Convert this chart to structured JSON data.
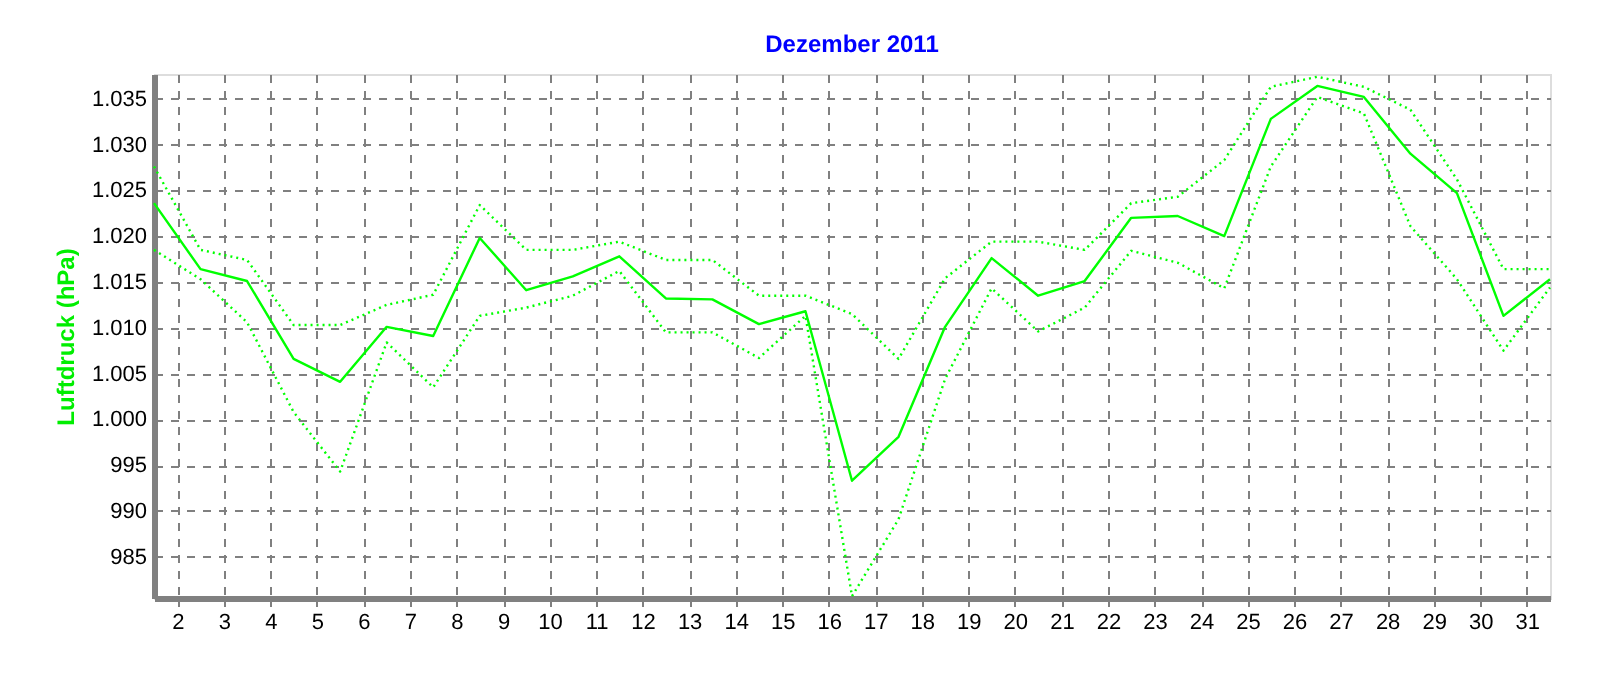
{
  "chart_data": {
    "type": "line",
    "title": "Dezember 2011",
    "ylabel": "Luftdruck (hPa)",
    "x": [
      1.5,
      2.5,
      3.5,
      4.5,
      5.5,
      6.5,
      7.5,
      8.5,
      9.5,
      10.5,
      11.5,
      12.5,
      13.5,
      14.5,
      15.5,
      16.5,
      17.5,
      18.5,
      19.5,
      20.5,
      21.5,
      22.5,
      23.5,
      24.5,
      25.5,
      26.5,
      27.5,
      28.5,
      29.5,
      30.5,
      31.5
    ],
    "series": [
      {
        "color": "#00ff00",
        "line_style": "solid",
        "values": [
          1023.6,
          1016.4,
          1015.1,
          1006.6,
          1004.1,
          1010.1,
          1009.1,
          1019.8,
          1014.1,
          1015.6,
          1017.8,
          1013.2,
          1013.1,
          1010.4,
          1011.8,
          993.3,
          998.1,
          1010.1,
          1017.6,
          1013.5,
          1015.1,
          1022.0,
          1022.2,
          1020.0,
          1032.8,
          1036.4,
          1035.2,
          1029.0,
          1024.7,
          1011.3,
          1015.3
        ]
      },
      {
        "color": "#00ff00",
        "line_style": "dotted",
        "values": [
          1027.6,
          1018.5,
          1017.4,
          1010.3,
          1010.3,
          1012.5,
          1013.6,
          1023.4,
          1018.5,
          1018.5,
          1019.4,
          1017.4,
          1017.4,
          1013.5,
          1013.5,
          1011.5,
          1006.6,
          1015.4,
          1019.4,
          1019.4,
          1018.5,
          1023.6,
          1024.3,
          1028.3,
          1036.3,
          1037.4,
          1036.3,
          1033.8,
          1026.2,
          1016.4,
          1016.4
        ]
      },
      {
        "color": "#00ff00",
        "line_style": "dotted",
        "values": [
          1018.5,
          1015.3,
          1010.6,
          1000.8,
          994.3,
          1008.4,
          1003.5,
          1011.3,
          1012.2,
          1013.5,
          1016.2,
          1009.5,
          1009.5,
          1006.7,
          1011.3,
          980.7,
          989.1,
          1004.4,
          1014.3,
          1009.6,
          1012.2,
          1018.4,
          1017.1,
          1014.3,
          1027.6,
          1035.2,
          1033.4,
          1021.1,
          1015.3,
          1007.5,
          1014.4
        ]
      }
    ],
    "xlim": [
      1.5,
      31.5
    ],
    "xticks": [
      2,
      3,
      4,
      5,
      6,
      7,
      8,
      9,
      10,
      11,
      12,
      13,
      14,
      15,
      16,
      17,
      18,
      19,
      20,
      21,
      22,
      23,
      24,
      25,
      26,
      27,
      28,
      29,
      30,
      31
    ],
    "ylim": [
      980.5,
      1037.7
    ],
    "yticks": [
      985,
      990,
      995,
      {
        "value": 1000,
        "label": "1.000"
      },
      {
        "value": 1005,
        "label": "1.005"
      },
      {
        "value": 1010,
        "label": "1.010"
      },
      {
        "value": 1015,
        "label": "1.015"
      },
      {
        "value": 1020,
        "label": "1.020"
      },
      {
        "value": 1025,
        "label": "1.025"
      },
      {
        "value": 1030,
        "label": "1.030"
      },
      {
        "value": 1035,
        "label": "1.035"
      }
    ],
    "grid": true
  }
}
